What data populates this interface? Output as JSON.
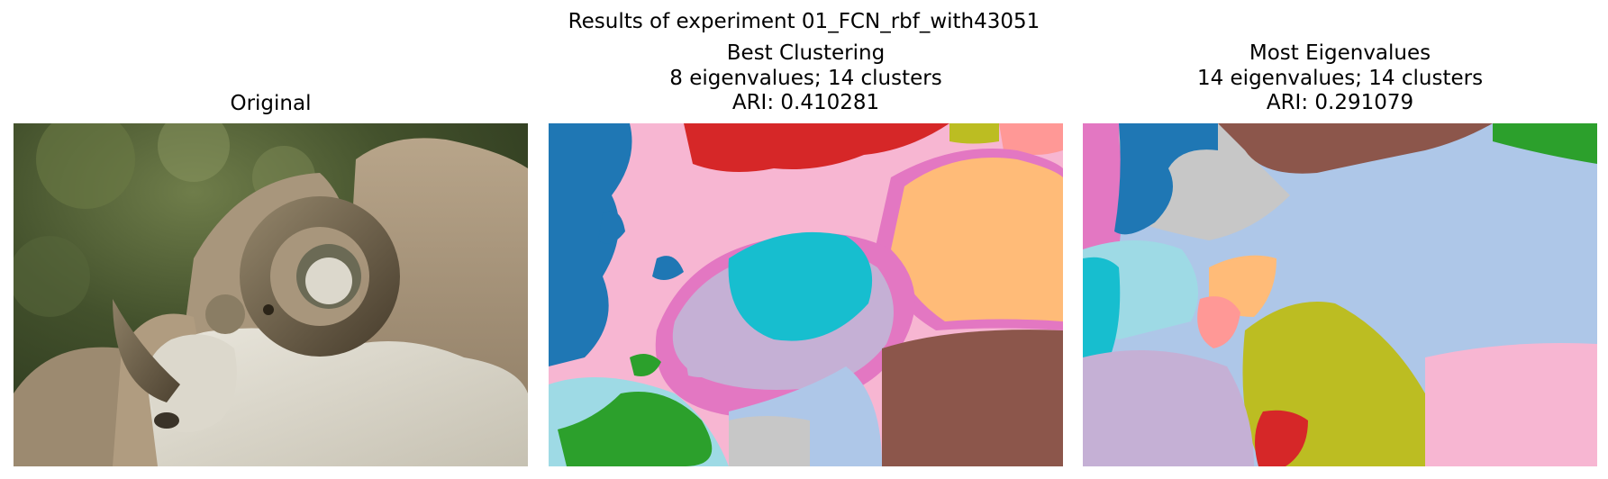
{
  "figure": {
    "suptitle": "Results of experiment 01_FCN_rbf_with43051"
  },
  "panels": [
    {
      "title_lines": [
        "Original"
      ],
      "image": "photo-ram-on-rocks"
    },
    {
      "title_lines": [
        "Best Clustering",
        "8 eigenvalues; 14 clusters",
        "ARI: 0.410281"
      ],
      "image": "segmentation-map"
    },
    {
      "title_lines": [
        "Most Eigenvalues",
        "14 eigenvalues; 14 clusters",
        "ARI: 0.291079"
      ],
      "image": "segmentation-map"
    }
  ],
  "palette": [
    "#1f77b4",
    "#aec7e8",
    "#2ca02c",
    "#d62728",
    "#8c564b",
    "#e377c2",
    "#f7b6d2",
    "#c7c7c7",
    "#bcbd22",
    "#17becf",
    "#9edae5",
    "#ffbb78",
    "#ff9896",
    "#c5b0d5"
  ]
}
